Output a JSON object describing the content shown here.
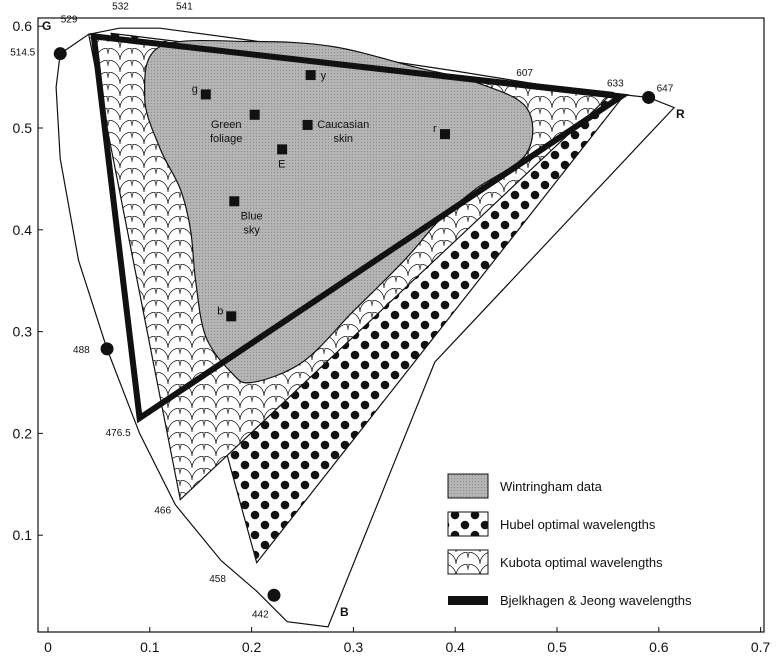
{
  "chart_data": {
    "type": "scatter",
    "x_ticks": [
      "0",
      "0.1",
      "0.2",
      "0.3",
      "0.4",
      "0.5",
      "0.6",
      "0.7"
    ],
    "y_ticks": [
      "0.1",
      "0.2",
      "0.3",
      "0.4",
      "0.5",
      "0.6"
    ],
    "xlim": [
      0,
      0.7
    ],
    "ylim": [
      0,
      0.6
    ],
    "corner_labels": {
      "G": "G",
      "R": "R",
      "B": "B"
    },
    "spectral_locus_labels": [
      {
        "label": "514.5",
        "x": 0.012,
        "y": 0.573,
        "marker": true
      },
      {
        "label": "529",
        "x": 0.04,
        "y": 0.592,
        "marker": false
      },
      {
        "label": "532",
        "x": 0.065,
        "y": 0.597,
        "marker": false
      },
      {
        "label": "541",
        "x": 0.11,
        "y": 0.597,
        "marker": false
      },
      {
        "label": "607",
        "x": 0.46,
        "y": 0.545,
        "marker": false
      },
      {
        "label": "633",
        "x": 0.555,
        "y": 0.535,
        "marker": false
      },
      {
        "label": "647",
        "x": 0.59,
        "y": 0.53,
        "marker": true
      },
      {
        "label": "488",
        "x": 0.058,
        "y": 0.283,
        "marker": true
      },
      {
        "label": "476.5",
        "x": 0.09,
        "y": 0.215,
        "marker": false
      },
      {
        "label": "466",
        "x": 0.13,
        "y": 0.135,
        "marker": false
      },
      {
        "label": "458",
        "x": 0.18,
        "y": 0.068,
        "marker": false
      },
      {
        "label": "442",
        "x": 0.222,
        "y": 0.041,
        "marker": true
      }
    ],
    "points": [
      {
        "label": "g",
        "x": 0.155,
        "y": 0.533
      },
      {
        "label": "",
        "x": 0.203,
        "y": 0.513
      },
      {
        "label": "y",
        "x": 0.258,
        "y": 0.552
      },
      {
        "label": "",
        "x": 0.255,
        "y": 0.503
      },
      {
        "label": "E",
        "x": 0.23,
        "y": 0.479
      },
      {
        "label": "r",
        "x": 0.39,
        "y": 0.494
      },
      {
        "label": "",
        "x": 0.183,
        "y": 0.428
      },
      {
        "label": "b",
        "x": 0.18,
        "y": 0.315
      }
    ],
    "region_labels": [
      {
        "lines": [
          "Green",
          "foliage"
        ],
        "x": 0.175,
        "y": 0.5
      },
      {
        "lines": [
          "Caucasian",
          "skin"
        ],
        "x": 0.29,
        "y": 0.5
      },
      {
        "lines": [
          "Blue",
          "sky"
        ],
        "x": 0.2,
        "y": 0.41
      }
    ],
    "series": [
      {
        "name": "Wintringham data",
        "type": "region",
        "fill": "#b4b4b4"
      },
      {
        "name": "Hubel optimal wavelengths",
        "type": "triangle",
        "vertices": [
          [
            0.062,
            0.593
          ],
          [
            0.565,
            0.531
          ],
          [
            0.205,
            0.073
          ]
        ]
      },
      {
        "name": "Kubota optimal wavelengths",
        "type": "triangle",
        "vertices": [
          [
            0.04,
            0.592
          ],
          [
            0.555,
            0.535
          ],
          [
            0.13,
            0.135
          ]
        ]
      },
      {
        "name": "Bjelkhagen & Jeong wavelengths",
        "type": "triangle",
        "vertices": [
          [
            0.045,
            0.59
          ],
          [
            0.563,
            0.531
          ],
          [
            0.09,
            0.215
          ]
        ]
      }
    ],
    "legend": [
      {
        "label": "Wintringham data",
        "style": "wintringham"
      },
      {
        "label": "Hubel optimal wavelengths",
        "style": "hubel"
      },
      {
        "label": "Kubota optimal wavelengths",
        "style": "kubota"
      },
      {
        "label": "Bjelkhagen & Jeong wavelengths",
        "style": "bj"
      }
    ],
    "legend_position": "bottom-right"
  }
}
